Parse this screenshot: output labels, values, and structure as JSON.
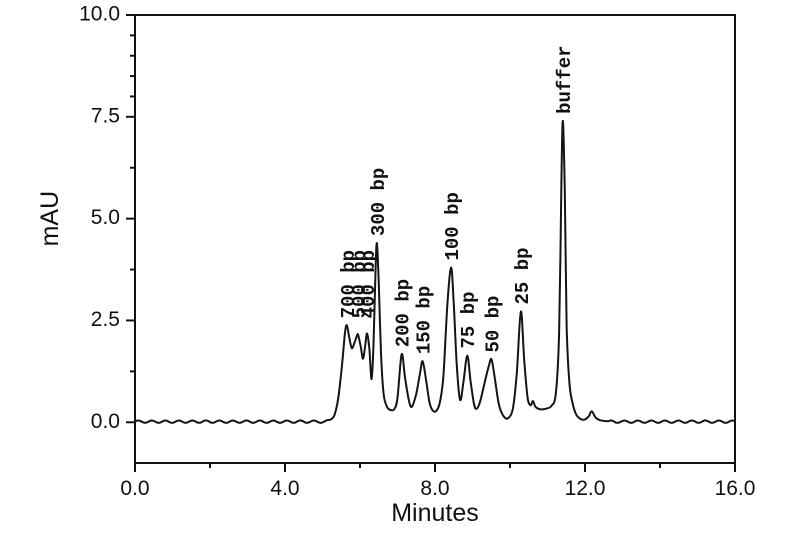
{
  "chart_data": {
    "type": "line",
    "title": "",
    "xlabel": "Minutes",
    "ylabel": "mAU",
    "xlim": [
      0.0,
      16.0
    ],
    "ylim": [
      -1.0,
      10.0
    ],
    "grid": false,
    "line_color": "#141414",
    "x_major_ticks": [
      0.0,
      4.0,
      8.0,
      12.0,
      16.0
    ],
    "x_major_tick_labels": [
      "0.0",
      "4.0",
      "8.0",
      "12.0",
      "16.0"
    ],
    "x_minor_ticks": [
      2.0,
      6.0,
      10.0,
      14.0
    ],
    "y_major_ticks": [
      0.0,
      2.5,
      5.0,
      7.5,
      10.0
    ],
    "y_major_tick_labels": [
      "0.0",
      "2.5",
      "5.0",
      "7.5",
      "10.0"
    ],
    "y_minor_ticks": [
      1.25,
      3.75,
      6.25,
      8.0,
      8.5,
      9.0,
      9.5
    ],
    "peaks": [
      {
        "label": "700 bp",
        "time": 5.65,
        "height": 2.38,
        "label_height": 2.38
      },
      {
        "label": "500 bp",
        "time": 5.95,
        "height": 2.15,
        "label_height": 2.38
      },
      {
        "label": "400 bp",
        "time": 6.19,
        "height": 2.18,
        "label_height": 2.38
      },
      {
        "label": "300 bp",
        "time": 6.45,
        "height": 4.4,
        "label_height": 4.4
      },
      {
        "label": "200 bp",
        "time": 7.11,
        "height": 1.67,
        "label_height": 1.67
      },
      {
        "label": "150 bp",
        "time": 7.67,
        "height": 1.5,
        "label_height": 1.5
      },
      {
        "label": "100 bp",
        "time": 8.43,
        "height": 3.8,
        "label_height": 3.8
      },
      {
        "label": "75 bp",
        "time": 8.86,
        "height": 1.64,
        "label_height": 1.64
      },
      {
        "label": "50 bp",
        "time": 9.51,
        "height": 1.54,
        "label_height": 1.54
      },
      {
        "label": "25 bp",
        "time": 10.29,
        "height": 2.72,
        "label_height": 2.72
      },
      {
        "label": "buffer",
        "time": 11.41,
        "height": 7.4,
        "label_height": 7.4
      }
    ],
    "curve_anchors": [
      [
        5.12,
        0.05
      ],
      [
        5.22,
        0.07
      ],
      [
        5.32,
        0.18
      ],
      [
        5.42,
        0.6
      ],
      [
        5.52,
        1.4
      ],
      [
        5.6,
        2.2
      ],
      [
        5.65,
        2.38
      ],
      [
        5.71,
        2.1
      ],
      [
        5.78,
        1.82
      ],
      [
        5.85,
        1.95
      ],
      [
        5.91,
        2.1
      ],
      [
        5.95,
        2.15
      ],
      [
        6.02,
        1.85
      ],
      [
        6.08,
        1.56
      ],
      [
        6.14,
        1.9
      ],
      [
        6.19,
        2.18
      ],
      [
        6.25,
        1.8
      ],
      [
        6.31,
        1.06
      ],
      [
        6.36,
        1.9
      ],
      [
        6.41,
        3.6
      ],
      [
        6.45,
        4.4
      ],
      [
        6.5,
        3.4
      ],
      [
        6.56,
        1.7
      ],
      [
        6.63,
        0.7
      ],
      [
        6.72,
        0.38
      ],
      [
        6.82,
        0.3
      ],
      [
        6.92,
        0.33
      ],
      [
        7.0,
        0.6
      ],
      [
        7.11,
        1.67
      ],
      [
        7.2,
        1.1
      ],
      [
        7.3,
        0.55
      ],
      [
        7.38,
        0.38
      ],
      [
        7.5,
        0.7
      ],
      [
        7.6,
        1.2
      ],
      [
        7.67,
        1.5
      ],
      [
        7.76,
        1.05
      ],
      [
        7.85,
        0.5
      ],
      [
        7.93,
        0.3
      ],
      [
        8.02,
        0.27
      ],
      [
        8.12,
        0.45
      ],
      [
        8.22,
        1.1
      ],
      [
        8.33,
        2.9
      ],
      [
        8.43,
        3.8
      ],
      [
        8.5,
        2.9
      ],
      [
        8.58,
        1.4
      ],
      [
        8.67,
        0.55
      ],
      [
        8.76,
        1.0
      ],
      [
        8.86,
        1.64
      ],
      [
        8.95,
        1.0
      ],
      [
        9.04,
        0.45
      ],
      [
        9.11,
        0.33
      ],
      [
        9.2,
        0.5
      ],
      [
        9.33,
        1.0
      ],
      [
        9.44,
        1.4
      ],
      [
        9.51,
        1.54
      ],
      [
        9.6,
        1.05
      ],
      [
        9.7,
        0.45
      ],
      [
        9.82,
        0.16
      ],
      [
        9.95,
        0.1
      ],
      [
        10.08,
        0.35
      ],
      [
        10.18,
        1.2
      ],
      [
        10.29,
        2.72
      ],
      [
        10.38,
        1.5
      ],
      [
        10.47,
        0.6
      ],
      [
        10.55,
        0.42
      ],
      [
        10.61,
        0.52
      ],
      [
        10.68,
        0.38
      ],
      [
        10.8,
        0.32
      ],
      [
        10.95,
        0.33
      ],
      [
        11.1,
        0.4
      ],
      [
        11.22,
        0.7
      ],
      [
        11.31,
        2.2
      ],
      [
        11.37,
        5.9
      ],
      [
        11.41,
        7.4
      ],
      [
        11.46,
        5.7
      ],
      [
        11.51,
        2.4
      ],
      [
        11.58,
        1.0
      ],
      [
        11.66,
        0.5
      ],
      [
        11.76,
        0.2
      ],
      [
        11.88,
        0.08
      ],
      [
        12.0,
        0.07
      ],
      [
        12.1,
        0.15
      ],
      [
        12.18,
        0.27
      ],
      [
        12.28,
        0.12
      ],
      [
        12.4,
        0.05
      ],
      [
        12.55,
        0.03
      ]
    ],
    "baseline": {
      "ripple_amplitude": 0.03,
      "ripple_offset": 0.015,
      "ripple_period": 0.36,
      "flat_regions": [
        [
          0.0,
          5.06
        ],
        [
          12.62,
          16.0
        ]
      ]
    }
  }
}
